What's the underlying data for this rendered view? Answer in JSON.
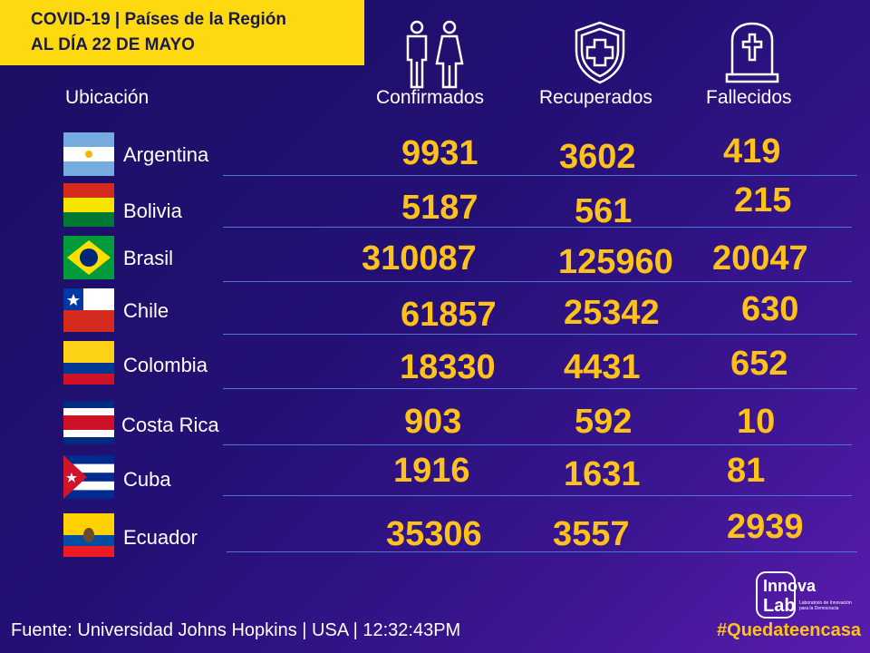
{
  "title": {
    "line1": "COVID-19 | Países de la Región",
    "line2": "AL DÍA 22 DE MAYO"
  },
  "headers": {
    "location": "Ubicación",
    "confirmed": "Confirmados",
    "recovered": "Recuperados",
    "deaths": "Fallecidos"
  },
  "rows": [
    {
      "country": "Argentina",
      "confirmed": "9931",
      "recovered": "3602",
      "deaths": "419"
    },
    {
      "country": "Bolivia",
      "confirmed": "5187",
      "recovered": "561",
      "deaths": "215"
    },
    {
      "country": "Brasil",
      "confirmed": "310087",
      "recovered": "125960",
      "deaths": "20047"
    },
    {
      "country": "Chile",
      "confirmed": "61857",
      "recovered": "25342",
      "deaths": "630"
    },
    {
      "country": "Colombia",
      "confirmed": "18330",
      "recovered": "4431",
      "deaths": "652"
    },
    {
      "country": "Costa Rica",
      "confirmed": "903",
      "recovered": "592",
      "deaths": "10"
    },
    {
      "country": "Cuba",
      "confirmed": "1916",
      "recovered": "1631",
      "deaths": "81"
    },
    {
      "country": "Ecuador",
      "confirmed": "35306",
      "recovered": "3557",
      "deaths": "2939"
    }
  ],
  "footer": {
    "source": "Fuente:  Universidad Johns Hopkins | USA | 12:32:43PM",
    "hashtag": "#Quedateencasa"
  },
  "logo": {
    "line1": "Innova",
    "line2": "Lab",
    "tagline1": "Laboratorio de Innovación",
    "tagline2": "para la Democracia"
  },
  "icons": {
    "confirmed": "people-icon",
    "recovered": "shield-cross-icon",
    "deaths": "tombstone-icon"
  },
  "colors": {
    "accent": "#ffc21a",
    "title_bg": "#ffd90f",
    "line": "#4a78d8"
  }
}
